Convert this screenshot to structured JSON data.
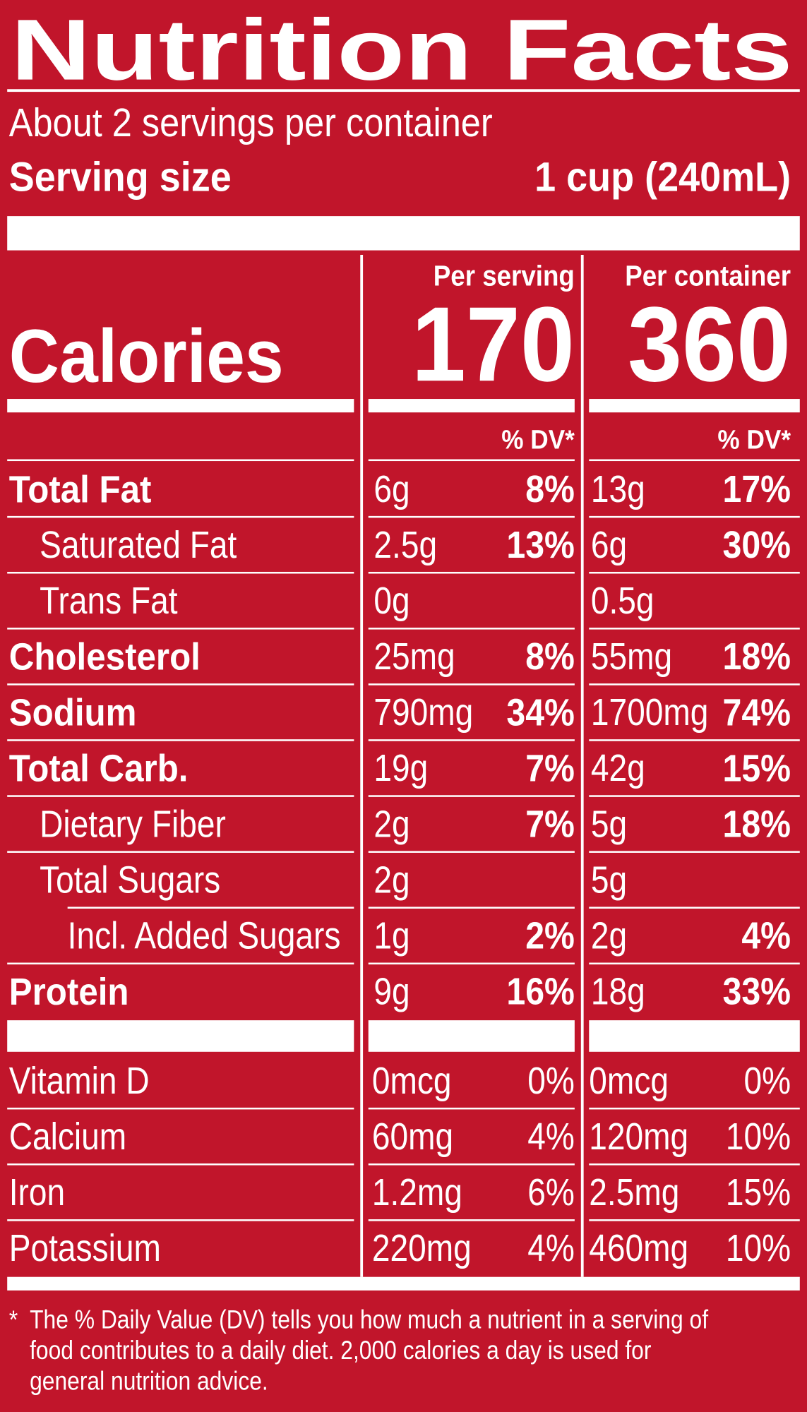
{
  "title": "Nutrition Facts",
  "servings": "About 2 servings per container",
  "serving_size_label": "Serving size",
  "serving_size": "1 cup (240mL)",
  "calories_label": "Calories",
  "columns": [
    {
      "heading": "Per serving",
      "calories": "170",
      "dv_heading": "% DV*"
    },
    {
      "heading": "Per container",
      "calories": "360",
      "dv_heading": "% DV*"
    }
  ],
  "nutrients": [
    {
      "name": "Total Fat",
      "bold": true,
      "indent": 0,
      "amounts": [
        "6g",
        "13g"
      ],
      "dv": [
        "8%",
        "17%"
      ]
    },
    {
      "name": "Saturated Fat",
      "bold": false,
      "indent": 1,
      "amounts": [
        "2.5g",
        "6g"
      ],
      "dv": [
        "13%",
        "30%"
      ]
    },
    {
      "name": "Trans Fat",
      "bold": false,
      "indent": 1,
      "amounts": [
        "0g",
        "0.5g"
      ]
    },
    {
      "name": "Cholesterol",
      "bold": true,
      "indent": 0,
      "amounts": [
        "25mg",
        "55mg"
      ],
      "dv": [
        "8%",
        "18%"
      ]
    },
    {
      "name": "Sodium",
      "bold": true,
      "indent": 0,
      "amounts": [
        "790mg",
        "1700mg"
      ],
      "dv": [
        "34%",
        "74%"
      ]
    },
    {
      "name": "Total Carb.",
      "bold": true,
      "indent": 0,
      "amounts": [
        "19g",
        "42g"
      ],
      "dv": [
        "7%",
        "15%"
      ]
    },
    {
      "name": "Dietary Fiber",
      "bold": false,
      "indent": 1,
      "amounts": [
        "2g",
        "5g"
      ],
      "dv": [
        "7%",
        "18%"
      ]
    },
    {
      "name": "Total Sugars",
      "bold": false,
      "indent": 1,
      "amounts": [
        "2g",
        "5g"
      ]
    },
    {
      "name": "Incl. Added Sugars",
      "bold": false,
      "indent": 2,
      "amounts": [
        "1g",
        "2g"
      ],
      "dv": [
        "2%",
        "4%"
      ]
    },
    {
      "name": "Protein",
      "bold": true,
      "indent": 0,
      "amounts": [
        "9g",
        "18g"
      ],
      "dv": [
        "16%",
        "33%"
      ]
    }
  ],
  "vitamins": [
    {
      "name": "Vitamin D",
      "amounts": [
        "0mcg",
        "0mcg"
      ],
      "dv": [
        "0%",
        "0%"
      ]
    },
    {
      "name": "Calcium",
      "amounts": [
        "60mg",
        "120mg"
      ],
      "dv": [
        "4%",
        "10%"
      ]
    },
    {
      "name": "Iron",
      "amounts": [
        "1.2mg",
        "2.5mg"
      ],
      "dv": [
        "6%",
        "15%"
      ]
    },
    {
      "name": "Potassium",
      "amounts": [
        "220mg",
        "460mg"
      ],
      "dv": [
        "4%",
        "10%"
      ]
    }
  ],
  "footnote_mark": "*",
  "footnote": [
    "The % Daily Value (DV) tells you how much a nutrient in a serving of",
    "food contributes to a daily diet. 2,000 calories a day is used for",
    "general nutrition advice."
  ]
}
